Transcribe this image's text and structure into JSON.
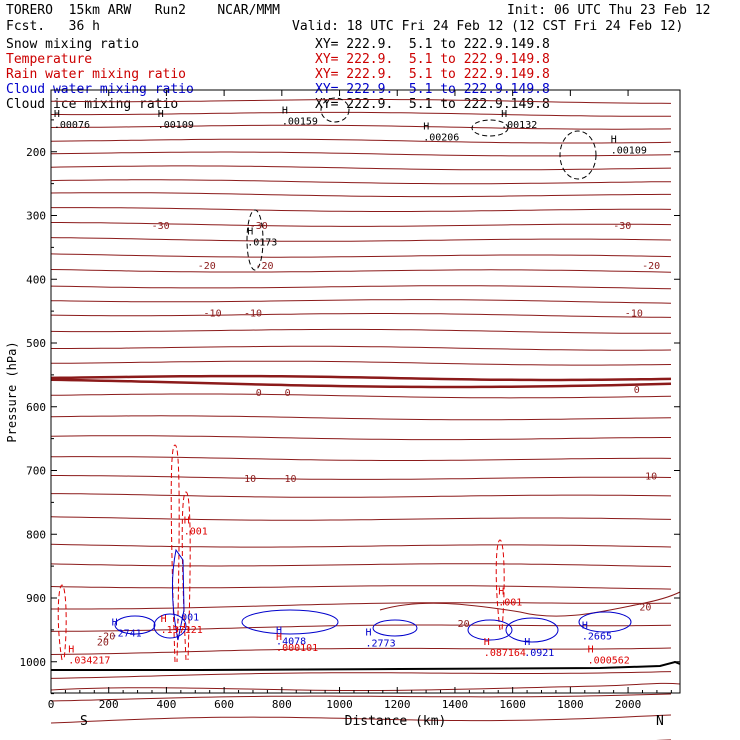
{
  "header": {
    "model": "TORERO  15km ARW   Run2    NCAR/MMM",
    "fcst": "Fcst.   36 h",
    "init": "Init: 06 UTC Thu 23 Feb 12",
    "valid": "Valid: 18 UTC Fri 24 Feb 12 (12 CST Fri 24 Feb 12)",
    "fields": [
      {
        "name": "Snow mixing ratio",
        "xy": "XY= 222.9.  5.1 to 222.9.149.8",
        "color": "#000000"
      },
      {
        "name": "Temperature",
        "xy": "XY= 222.9.  5.1 to 222.9.149.8",
        "color": "#cc0000"
      },
      {
        "name": "Rain water mixing ratio",
        "xy": "XY= 222.9.  5.1 to 222.9.149.8",
        "color": "#cc0000"
      },
      {
        "name": "Cloud water mixing ratio",
        "xy": "XY= 222.9.  5.1 to 222.9.149.8",
        "color": "#0000cc"
      },
      {
        "name": "Cloud ice mixing ratio",
        "xy": "XY= 222.9.  5.1 to 222.9.149.8",
        "color": "#000000"
      }
    ]
  },
  "chart_data": {
    "type": "contour",
    "xlabel": "Distance (km)",
    "ylabel": "Pressure (hPa)",
    "xlim": [
      0,
      2180
    ],
    "ylim": [
      1050,
      100
    ],
    "x_ticks": [
      0,
      200,
      400,
      600,
      800,
      1000,
      1200,
      1400,
      1600,
      1800,
      2000
    ],
    "y_ticks": [
      200,
      300,
      400,
      500,
      600,
      700,
      800,
      900,
      1000
    ],
    "end_labels": {
      "left": "S",
      "right": "N"
    },
    "colors": {
      "temperature": "#8b1a1a",
      "rain": "#dd0000",
      "cloud_water": "#0000cc",
      "snow": "#000000",
      "terrain": "#000000"
    },
    "temperature_labels": [
      {
        "value": "-30",
        "x": 380,
        "p": 315
      },
      {
        "value": "-30",
        "x": 1980,
        "p": 315
      },
      {
        "value": "-30",
        "x": 720,
        "p": 315
      },
      {
        "value": "-20",
        "x": 540,
        "p": 378
      },
      {
        "value": "-20",
        "x": 740,
        "p": 378
      },
      {
        "value": "-20",
        "x": 2080,
        "p": 378
      },
      {
        "value": "-10",
        "x": 560,
        "p": 452
      },
      {
        "value": "-10",
        "x": 700,
        "p": 452
      },
      {
        "value": "-10",
        "x": 2020,
        "p": 452
      },
      {
        "value": "0",
        "x": 720,
        "p": 577
      },
      {
        "value": "0",
        "x": 820,
        "p": 577
      },
      {
        "value": "0",
        "x": 2030,
        "p": 572
      },
      {
        "value": "10",
        "x": 690,
        "p": 712
      },
      {
        "value": "10",
        "x": 830,
        "p": 712
      },
      {
        "value": "10",
        "x": 2080,
        "p": 708
      },
      {
        "value": "20",
        "x": 1430,
        "p": 939
      },
      {
        "value": "20",
        "x": 2060,
        "p": 913
      },
      {
        "value": "20",
        "x": 180,
        "p": 968
      }
    ],
    "extrema_labels": [
      {
        "mark": "H",
        "value": ".00076",
        "x": 10,
        "p": 163,
        "color": "#000000"
      },
      {
        "mark": "H",
        "value": ".00109",
        "x": 370,
        "p": 163,
        "color": "#000000"
      },
      {
        "mark": "H",
        "value": ".00159",
        "x": 800,
        "p": 157,
        "color": "#000000"
      },
      {
        "mark": "H",
        "value": ".00206",
        "x": 1290,
        "p": 182,
        "color": "#000000"
      },
      {
        "mark": "H",
        "value": ".00132",
        "x": 1560,
        "p": 163,
        "color": "#000000"
      },
      {
        "mark": "H",
        "value": ".00109",
        "x": 1940,
        "p": 203,
        "color": "#000000"
      },
      {
        "mark": "H",
        "value": ".0173",
        "x": 680,
        "p": 347,
        "color": "#000000"
      },
      {
        "mark": "H",
        "value": ".001",
        "x": 460,
        "p": 800,
        "color": "#dd0000"
      },
      {
        "mark": "H",
        "value": ".001",
        "x": 1550,
        "p": 912,
        "color": "#dd0000"
      },
      {
        "mark": "H",
        "value": ".137121",
        "x": 380,
        "p": 955,
        "color": "#dd0000"
      },
      {
        "mark": "H",
        "value": ".2741",
        "x": 210,
        "p": 960,
        "color": "#0000cc"
      },
      {
        "mark": "H",
        "value": ".4078",
        "x": 780,
        "p": 973,
        "color": "#0000cc"
      },
      {
        "mark": "H",
        "value": ".000101",
        "x": 780,
        "p": 983,
        "color": "#dd0000"
      },
      {
        "mark": "H",
        "value": ".2773",
        "x": 1090,
        "p": 976,
        "color": "#0000cc"
      },
      {
        "mark": "H",
        "value": ".087164",
        "x": 1500,
        "p": 991,
        "color": "#dd0000"
      },
      {
        "mark": "H",
        "value": ".0921",
        "x": 1640,
        "p": 991,
        "color": "#0000cc"
      },
      {
        "mark": "H",
        "value": ".2665",
        "x": 1840,
        "p": 965,
        "color": "#0000cc"
      },
      {
        "mark": "H",
        "value": ".000562",
        "x": 1860,
        "p": 1003,
        "color": "#dd0000"
      },
      {
        "mark": "H",
        "value": ".034217",
        "x": 60,
        "p": 1003,
        "color": "#dd0000"
      },
      {
        "mark": "",
        "value": ".001",
        "x": 430,
        "p": 935,
        "color": "#0000cc"
      },
      {
        "mark": "",
        "value": "-20",
        "x": 160,
        "p": 965,
        "color": "#8b1a1a"
      }
    ]
  }
}
